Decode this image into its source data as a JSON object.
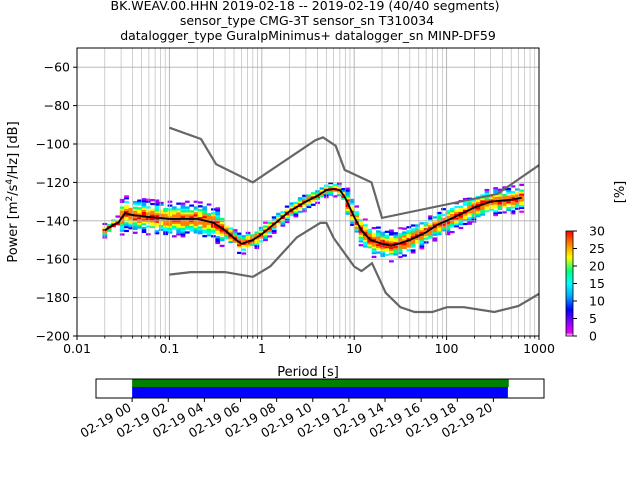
{
  "title_lines": [
    "BK.WEAV.00.HHN   2019-02-18 -- 2019-02-19  (40/40 segments)",
    "sensor_type CMG-3T sensor_sn T310034",
    "datalogger_type GuralpMinimus+ datalogger_sn MINP-DF59"
  ],
  "chart_data": {
    "type": "heatmap",
    "xlabel": "Period [s]",
    "ylabel_parts": {
      "pre": "Power [m",
      "sup1": "2",
      "mid": "/s",
      "sup2": "4",
      "post": "/Hz] [dB]"
    },
    "x_scale": "log",
    "xlim": [
      0.01,
      1000
    ],
    "ylim": [
      -200,
      -50
    ],
    "x_ticks": [
      {
        "value": 0.01,
        "label": "0.01"
      },
      {
        "value": 0.1,
        "label": "0.1"
      },
      {
        "value": 1,
        "label": "1"
      },
      {
        "value": 10,
        "label": "10"
      },
      {
        "value": 100,
        "label": "100"
      },
      {
        "value": 1000,
        "label": "1000"
      }
    ],
    "y_ticks": [
      {
        "value": -60,
        "label": "−60"
      },
      {
        "value": -80,
        "label": "−80"
      },
      {
        "value": -100,
        "label": "−100"
      },
      {
        "value": -120,
        "label": "−120"
      },
      {
        "value": -140,
        "label": "−140"
      },
      {
        "value": -160,
        "label": "−160"
      },
      {
        "value": -180,
        "label": "−180"
      },
      {
        "value": -200,
        "label": "−200"
      }
    ],
    "grid": true,
    "colorbar": {
      "label": "[%]",
      "min": 0,
      "max": 30,
      "ticks": [
        {
          "value": 0,
          "label": "0"
        },
        {
          "value": 5,
          "label": "5"
        },
        {
          "value": 10,
          "label": "10"
        },
        {
          "value": 15,
          "label": "15"
        },
        {
          "value": 20,
          "label": "20"
        },
        {
          "value": 25,
          "label": "25"
        },
        {
          "value": 30,
          "label": "30"
        }
      ]
    },
    "new_high_noise_model": [
      [
        0.1,
        -91.5
      ],
      [
        0.22,
        -97.4
      ],
      [
        0.32,
        -110.5
      ],
      [
        0.8,
        -120
      ],
      [
        3.8,
        -98
      ],
      [
        4.6,
        -96.5
      ],
      [
        6.3,
        -101
      ],
      [
        7.9,
        -113.5
      ],
      [
        15.4,
        -120
      ],
      [
        20,
        -138.5
      ],
      [
        354.8,
        -126
      ],
      [
        1000,
        -111
      ]
    ],
    "new_low_noise_model": [
      [
        0.1,
        -168
      ],
      [
        0.17,
        -166.7
      ],
      [
        0.4,
        -166.7
      ],
      [
        0.8,
        -169.2
      ],
      [
        1.24,
        -163.7
      ],
      [
        2.4,
        -148.6
      ],
      [
        4.3,
        -141.1
      ],
      [
        5,
        -141.1
      ],
      [
        6,
        -149
      ],
      [
        10,
        -163.8
      ],
      [
        12,
        -166.2
      ],
      [
        15.6,
        -162.1
      ],
      [
        21.9,
        -177.5
      ],
      [
        31.6,
        -185
      ],
      [
        45,
        -187.5
      ],
      [
        70,
        -187.5
      ],
      [
        101,
        -185
      ],
      [
        154,
        -185
      ],
      [
        328,
        -187.5
      ],
      [
        600,
        -184.4
      ],
      [
        1000,
        -178
      ]
    ],
    "median": [
      [
        0.02,
        -145
      ],
      [
        0.025,
        -142
      ],
      [
        0.028,
        -141
      ],
      [
        0.033,
        -136
      ],
      [
        0.04,
        -137
      ],
      [
        0.06,
        -138
      ],
      [
        0.1,
        -139
      ],
      [
        0.2,
        -139
      ],
      [
        0.3,
        -141
      ],
      [
        0.4,
        -145
      ],
      [
        0.5,
        -149
      ],
      [
        0.6,
        -152
      ],
      [
        0.8,
        -150
      ],
      [
        1,
        -147
      ],
      [
        1.5,
        -140
      ],
      [
        2,
        -135
      ],
      [
        3,
        -130
      ],
      [
        4,
        -127
      ],
      [
        5,
        -124
      ],
      [
        6,
        -123.5
      ],
      [
        7,
        -124
      ],
      [
        8,
        -128
      ],
      [
        10,
        -138
      ],
      [
        12,
        -145
      ],
      [
        15,
        -150
      ],
      [
        20,
        -152
      ],
      [
        25,
        -153
      ],
      [
        30,
        -152
      ],
      [
        40,
        -150
      ],
      [
        60,
        -146
      ],
      [
        80,
        -142
      ],
      [
        100,
        -140
      ],
      [
        150,
        -136
      ],
      [
        200,
        -133
      ],
      [
        300,
        -130
      ],
      [
        500,
        -129
      ],
      [
        650,
        -128
      ]
    ],
    "time_axis": {
      "tick_labels": [
        "02-19 00",
        "02-19 02",
        "02-19 04",
        "02-19 06",
        "02-19 08",
        "02-19 10",
        "02-19 12",
        "02-19 14",
        "02-19 16",
        "02-19 18",
        "02-19 20"
      ],
      "coverage_start_hours": 0,
      "coverage_end_hours": 20.8,
      "axis_start_hours": -2,
      "axis_end_hours": 22.8
    }
  },
  "colors": {
    "noise_model": "#666666",
    "median": "#000000",
    "coverage_data": "#0000ff",
    "coverage_gaps_none": "#008000"
  }
}
